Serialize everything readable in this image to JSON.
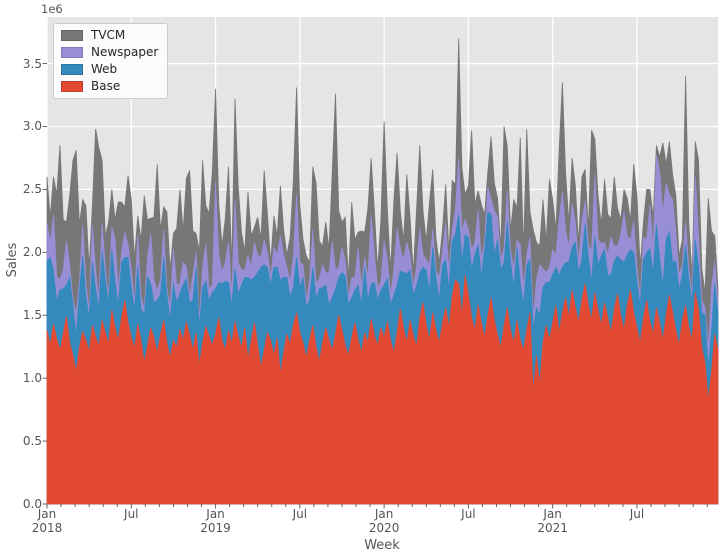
{
  "figure": {
    "offset_text": "1e6",
    "ylabel": "Sales",
    "xlabel": "Week",
    "background": "#ffffff",
    "plot_background": "#e5e5e5",
    "grid_color": "#ffffff",
    "text_color": "#555555",
    "tick_color": "#555555"
  },
  "legend": {
    "items": [
      {
        "label": "TVCM",
        "color": "#777777"
      },
      {
        "label": "Newspaper",
        "color": "#988ed5"
      },
      {
        "label": "Web",
        "color": "#348abd"
      },
      {
        "label": "Base",
        "color": "#e24a33"
      }
    ]
  },
  "chart_data": {
    "type": "area",
    "stacked": true,
    "title": "",
    "xlabel": "Week",
    "ylabel": "Sales",
    "y_unit": "1e6",
    "ylim": [
      0,
      3.87
    ],
    "grid": true,
    "legend_position": "upper left",
    "x_start": "2018-01",
    "x_freq": "weekly",
    "n_points": 208,
    "y_ticks": [
      0.0,
      0.5,
      1.0,
      1.5,
      2.0,
      2.5,
      3.0,
      3.5
    ],
    "x_major_ticks": [
      {
        "week": 0,
        "label": "Jan",
        "year": "2018"
      },
      {
        "week": 26,
        "label": "Jul",
        "year": ""
      },
      {
        "week": 52,
        "label": "Jan",
        "year": "2019"
      },
      {
        "week": 78,
        "label": "Jul",
        "year": ""
      },
      {
        "week": 104,
        "label": "Jan",
        "year": "2020"
      },
      {
        "week": 130,
        "label": "Jul",
        "year": ""
      },
      {
        "week": 156,
        "label": "Jan",
        "year": "2021"
      },
      {
        "week": 182,
        "label": "Jul",
        "year": ""
      }
    ],
    "x_minor_months": 48,
    "weeks_per_month": 4.3333,
    "series": [
      {
        "name": "Base",
        "color": "#e24a33",
        "values": [
          1.38,
          1.26,
          1.43,
          1.31,
          1.22,
          1.35,
          1.49,
          1.28,
          1.18,
          1.05,
          1.24,
          1.37,
          1.3,
          1.21,
          1.42,
          1.33,
          1.25,
          1.46,
          1.36,
          1.27,
          1.54,
          1.4,
          1.3,
          1.48,
          1.62,
          1.44,
          1.32,
          1.24,
          1.43,
          1.3,
          1.12,
          1.26,
          1.4,
          1.32,
          1.2,
          1.34,
          1.46,
          1.28,
          1.16,
          1.3,
          1.24,
          1.39,
          1.3,
          1.45,
          1.34,
          1.22,
          1.36,
          1.1,
          1.28,
          1.41,
          1.33,
          1.26,
          1.35,
          1.48,
          1.3,
          1.22,
          1.38,
          1.27,
          1.45,
          1.33,
          1.24,
          1.4,
          1.15,
          1.3,
          1.44,
          1.26,
          1.08,
          1.22,
          1.36,
          1.3,
          1.18,
          1.32,
          1.03,
          1.2,
          1.35,
          1.27,
          1.42,
          1.52,
          1.36,
          1.28,
          1.16,
          1.3,
          1.42,
          1.25,
          1.13,
          1.28,
          1.4,
          1.3,
          1.22,
          1.35,
          1.5,
          1.38,
          1.26,
          1.18,
          1.32,
          1.44,
          1.3,
          1.2,
          1.36,
          1.28,
          1.47,
          1.34,
          1.26,
          1.4,
          1.32,
          1.45,
          1.3,
          1.2,
          1.36,
          1.55,
          1.4,
          1.28,
          1.46,
          1.34,
          1.25,
          1.48,
          1.6,
          1.42,
          1.3,
          1.52,
          1.38,
          1.28,
          1.44,
          1.56,
          1.4,
          1.65,
          1.78,
          1.75,
          1.5,
          1.82,
          1.66,
          1.48,
          1.38,
          1.58,
          1.44,
          1.32,
          1.5,
          1.64,
          1.46,
          1.34,
          1.24,
          1.42,
          1.56,
          1.38,
          1.28,
          1.46,
          1.3,
          1.22,
          1.38,
          1.52,
          0.88,
          1.18,
          0.95,
          1.28,
          1.42,
          1.3,
          1.44,
          1.58,
          1.36,
          1.52,
          1.64,
          1.48,
          1.7,
          1.56,
          1.44,
          1.62,
          1.75,
          1.58,
          1.46,
          1.68,
          1.54,
          1.42,
          1.6,
          1.48,
          1.36,
          1.55,
          1.67,
          1.5,
          1.38,
          1.58,
          1.7,
          1.52,
          1.4,
          1.28,
          1.48,
          1.62,
          1.45,
          1.35,
          1.56,
          1.44,
          1.3,
          1.5,
          1.66,
          1.52,
          1.38,
          1.26,
          1.46,
          1.58,
          1.4,
          1.3,
          1.68,
          1.54,
          1.24,
          1.12,
          0.82,
          1.05,
          1.35,
          1.22
        ]
      },
      {
        "name": "Web",
        "color": "#348abd",
        "values": [
          0.55,
          0.7,
          0.42,
          0.3,
          0.48,
          0.36,
          0.25,
          0.52,
          0.4,
          0.28,
          0.45,
          0.6,
          0.35,
          0.26,
          0.5,
          0.38,
          0.3,
          0.55,
          0.42,
          0.32,
          0.48,
          0.36,
          0.28,
          0.44,
          0.34,
          0.52,
          0.4,
          0.3,
          0.46,
          0.25,
          0.38,
          0.55,
          0.35,
          0.28,
          0.42,
          0.32,
          0.5,
          0.38,
          0.3,
          0.45,
          0.36,
          0.28,
          0.44,
          0.34,
          0.26,
          0.4,
          0.52,
          0.3,
          0.44,
          0.36,
          0.28,
          0.42,
          0.36,
          0.28,
          0.45,
          0.55,
          0.38,
          0.3,
          0.42,
          0.34,
          0.5,
          0.4,
          0.65,
          0.48,
          0.36,
          0.58,
          0.8,
          0.68,
          0.52,
          0.44,
          0.7,
          0.56,
          0.75,
          0.6,
          0.45,
          0.38,
          0.3,
          0.44,
          0.36,
          0.52,
          0.4,
          0.32,
          0.46,
          0.38,
          0.58,
          0.44,
          0.34,
          0.28,
          0.42,
          0.36,
          0.3,
          0.46,
          0.55,
          0.4,
          0.32,
          0.26,
          0.44,
          0.38,
          0.52,
          0.34,
          0.28,
          0.42,
          0.36,
          0.3,
          0.42,
          0.34,
          0.28,
          0.46,
          0.38,
          0.3,
          0.44,
          0.55,
          0.4,
          0.32,
          0.48,
          0.36,
          0.28,
          0.44,
          0.38,
          0.52,
          0.42,
          0.34,
          0.46,
          0.38,
          0.3,
          0.44,
          0.36,
          0.55,
          0.42,
          0.32,
          0.46,
          0.38,
          0.6,
          0.48,
          0.36,
          0.7,
          0.82,
          0.66,
          0.52,
          0.76,
          0.62,
          0.5,
          0.68,
          0.54,
          0.44,
          0.58,
          0.46,
          0.36,
          0.52,
          0.42,
          0.5,
          0.38,
          0.55,
          0.44,
          0.34,
          0.46,
          0.38,
          0.3,
          0.46,
          0.36,
          0.28,
          0.44,
          0.34,
          0.52,
          0.4,
          0.32,
          0.48,
          0.38,
          0.3,
          0.44,
          0.36,
          0.55,
          0.42,
          0.34,
          0.46,
          0.38,
          0.3,
          0.44,
          0.54,
          0.4,
          0.32,
          0.48,
          0.36,
          0.3,
          0.46,
          0.38,
          0.58,
          0.48,
          0.66,
          0.52,
          0.42,
          0.6,
          0.5,
          0.4,
          0.55,
          0.44,
          0.36,
          0.48,
          0.38,
          0.3,
          0.42,
          0.34,
          0.28,
          0.38,
          0.26,
          0.32,
          0.4,
          0.3
        ]
      },
      {
        "name": "Newspaper",
        "color": "#988ed5",
        "values": [
          0.3,
          0.12,
          0.45,
          0.2,
          0.08,
          0.15,
          0.35,
          0.1,
          0.05,
          0.18,
          0.08,
          0.25,
          0.12,
          0.06,
          0.3,
          0.15,
          0.08,
          0.22,
          0.1,
          0.05,
          0.18,
          0.35,
          0.12,
          0.08,
          0.2,
          0.1,
          0.15,
          0.06,
          0.25,
          0.1,
          0.05,
          0.15,
          0.4,
          0.18,
          0.08,
          0.12,
          0.22,
          0.06,
          0.1,
          0.28,
          0.14,
          0.08,
          0.18,
          0.1,
          0.05,
          0.2,
          0.12,
          0.06,
          0.16,
          0.3,
          0.1,
          0.06,
          0.85,
          0.22,
          0.1,
          0.15,
          0.32,
          0.08,
          0.55,
          0.25,
          0.12,
          0.06,
          0.18,
          0.1,
          0.28,
          0.14,
          0.08,
          0.2,
          0.12,
          0.06,
          0.16,
          0.1,
          0.35,
          0.18,
          0.08,
          0.12,
          0.25,
          0.5,
          0.2,
          0.1,
          0.06,
          0.15,
          0.3,
          0.12,
          0.08,
          0.18,
          0.1,
          0.25,
          0.45,
          0.15,
          0.08,
          0.2,
          0.12,
          0.06,
          0.16,
          0.1,
          0.3,
          0.14,
          0.08,
          0.18,
          0.55,
          0.22,
          0.1,
          0.06,
          0.35,
          0.15,
          0.08,
          0.2,
          0.45,
          0.18,
          0.1,
          0.25,
          0.12,
          0.06,
          0.16,
          0.35,
          0.1,
          0.08,
          0.22,
          0.14,
          0.06,
          0.18,
          0.1,
          0.3,
          0.15,
          0.08,
          0.2,
          0.45,
          0.25,
          0.12,
          0.06,
          0.16,
          0.1,
          0.28,
          0.14,
          0.08,
          0.2,
          0.12,
          0.35,
          0.18,
          0.08,
          0.12,
          0.25,
          0.1,
          0.15,
          0.06,
          0.3,
          0.14,
          0.08,
          0.18,
          0.1,
          0.22,
          0.4,
          0.15,
          0.08,
          0.12,
          0.2,
          0.1,
          0.45,
          0.6,
          0.25,
          0.12,
          0.35,
          0.15,
          0.08,
          0.3,
          0.18,
          0.1,
          0.25,
          0.5,
          0.2,
          0.1,
          0.06,
          0.16,
          0.3,
          0.12,
          0.08,
          0.2,
          0.4,
          0.15,
          0.08,
          0.25,
          0.12,
          0.06,
          0.18,
          0.1,
          0.35,
          0.2,
          0.55,
          0.68,
          0.6,
          0.45,
          0.3,
          0.5,
          0.22,
          0.12,
          0.08,
          0.18,
          0.1,
          0.06,
          0.5,
          0.25,
          0.1,
          0.06,
          0.15,
          0.35,
          0.18,
          0.08
        ]
      },
      {
        "name": "TVCM",
        "color": "#777777",
        "values": [
          0.37,
          0.2,
          0.3,
          0.65,
          1.07,
          0.4,
          0.15,
          0.55,
          1.1,
          1.3,
          0.45,
          0.2,
          0.6,
          0.35,
          0.15,
          1.12,
          1.2,
          0.5,
          0.25,
          0.6,
          0.3,
          0.15,
          0.7,
          0.4,
          0.2,
          0.55,
          0.55,
          0.35,
          0.15,
          0.45,
          0.9,
          0.3,
          0.12,
          0.5,
          1.0,
          0.4,
          0.18,
          0.6,
          0.3,
          0.12,
          0.45,
          0.75,
          0.25,
          0.7,
          1.0,
          0.35,
          0.15,
          0.55,
          0.85,
          0.3,
          0.6,
          0.9,
          0.74,
          0.4,
          0.2,
          0.35,
          0.6,
          0.25,
          0.8,
          0.6,
          0.3,
          0.15,
          0.5,
          0.25,
          0.12,
          0.3,
          0.15,
          0.55,
          0.3,
          0.12,
          0.25,
          0.15,
          0.4,
          0.2,
          0.1,
          0.35,
          0.6,
          0.85,
          0.45,
          0.2,
          0.35,
          0.15,
          0.5,
          0.8,
          0.3,
          0.15,
          0.4,
          0.2,
          0.55,
          1.4,
          0.45,
          0.2,
          0.35,
          0.15,
          0.6,
          0.3,
          0.12,
          0.45,
          0.2,
          0.55,
          0.45,
          0.35,
          0.15,
          0.5,
          0.95,
          0.4,
          0.2,
          0.55,
          0.6,
          0.3,
          0.15,
          0.54,
          0.3,
          0.12,
          0.45,
          0.66,
          0.35,
          0.15,
          0.5,
          0.48,
          0.25,
          0.12,
          0.18,
          0.3,
          0.15,
          0.4,
          0.2,
          0.95,
          0.5,
          0.2,
          0.35,
          0.95,
          0.3,
          0.15,
          0.44,
          0.2,
          0.12,
          0.5,
          0.22,
          0.15,
          0.1,
          0.96,
          0.35,
          0.15,
          0.55,
          0.25,
          0.85,
          0.3,
          1.0,
          0.2,
          0.7,
          0.3,
          0.15,
          0.55,
          0.25,
          0.7,
          0.4,
          0.2,
          0.55,
          0.87,
          0.45,
          0.2,
          0.36,
          0.3,
          0.15,
          0.36,
          0.25,
          0.12,
          0.96,
          0.28,
          0.35,
          0.15,
          0.5,
          0.32,
          0.15,
          0.55,
          0.3,
          0.12,
          0.18,
          0.3,
          0.15,
          0.45,
          0.57,
          0.25,
          0.12,
          0.4,
          0.12,
          0.25,
          0.08,
          0.12,
          0.55,
          0.15,
          0.42,
          0.2,
          0.3,
          0.15,
          0.2,
          1.16,
          0.35,
          0.15,
          0.28,
          0.6,
          0.25,
          0.12,
          1.2,
          0.45,
          0.2,
          0.12
        ]
      }
    ]
  }
}
